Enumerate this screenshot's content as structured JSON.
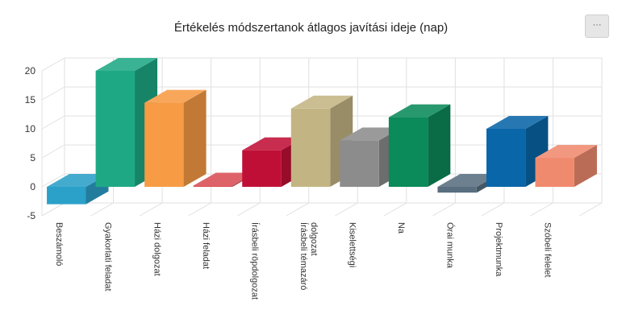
{
  "title": "Értékelés módszertanok átlagos javítási ideje (nap)",
  "menu_button_label": "···",
  "menu_icon": "ellipsis-icon",
  "chart_data": {
    "type": "bar",
    "style": "3d-column",
    "title": "Értékelés módszertanok átlagos javítási ideje (nap)",
    "xlabel": "",
    "ylabel": "",
    "ylim": [
      -5,
      20
    ],
    "yticks": [
      -5,
      0,
      5,
      10,
      15,
      20
    ],
    "grid": true,
    "legend": "none",
    "categories": [
      "Beszámoló",
      "Gyakorlati feladat",
      "Házi dolgozat",
      "Házi feladat",
      "Írásbeli röpdolgozat",
      "Írásbeli témazáró dolgozat",
      "Kiselettségi",
      "Na",
      "Órai munka",
      "Projektmunka",
      "Szóbeli felelet"
    ],
    "values": [
      -3,
      20,
      14.5,
      0.2,
      6.3,
      13.5,
      8,
      12,
      -1,
      10,
      5
    ],
    "colors": [
      "#2ba0c9",
      "#1ea984",
      "#f79b44",
      "#d94e55",
      "#c00f36",
      "#c3b583",
      "#8c8c8c",
      "#0b8a5a",
      "#596f80",
      "#0966a8",
      "#f08a6f"
    ]
  }
}
